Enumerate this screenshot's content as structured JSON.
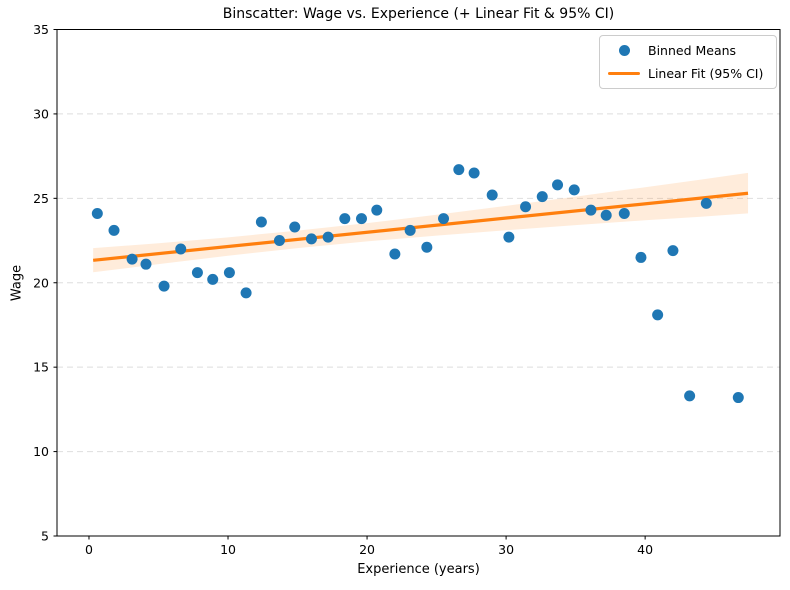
{
  "chart_data": {
    "type": "scatter",
    "title": "Binscatter: Wage vs. Experience (+ Linear Fit & 95% CI)",
    "xlabel": "Experience (years)",
    "ylabel": "Wage",
    "xlim": [
      -2.3,
      49.7
    ],
    "ylim": [
      5,
      35
    ],
    "xticks": [
      0,
      10,
      20,
      30,
      40
    ],
    "yticks": [
      5,
      10,
      15,
      20,
      25,
      30,
      35
    ],
    "grid": {
      "axis": "y",
      "style": "dashed",
      "on": true
    },
    "colors": {
      "points": "#1f77b4",
      "fit_line": "#ff7f0e",
      "ci_band": "rgba(255,127,14,0.15)",
      "grid": "#dedede",
      "spine": "#000000",
      "text": "#000000"
    },
    "legend": {
      "position": "upper right",
      "entries": [
        {
          "label": "Binned Means",
          "marker": "circle",
          "color": "#1f77b4"
        },
        {
          "label": "Linear Fit (95% CI)",
          "marker": "line",
          "color": "#ff7f0e"
        }
      ]
    },
    "series": [
      {
        "name": "Binned Means",
        "type": "scatter",
        "marker_diameter_px": 11,
        "points": [
          [
            0.6,
            24.1
          ],
          [
            1.8,
            23.1
          ],
          [
            3.1,
            21.4
          ],
          [
            4.1,
            21.1
          ],
          [
            5.4,
            19.8
          ],
          [
            6.6,
            22.0
          ],
          [
            7.8,
            20.6
          ],
          [
            8.9,
            20.2
          ],
          [
            10.1,
            20.6
          ],
          [
            11.3,
            19.4
          ],
          [
            12.4,
            23.6
          ],
          [
            13.7,
            22.5
          ],
          [
            14.8,
            23.3
          ],
          [
            16.0,
            22.6
          ],
          [
            17.2,
            22.7
          ],
          [
            18.4,
            23.8
          ],
          [
            19.6,
            23.8
          ],
          [
            20.7,
            24.3
          ],
          [
            22.0,
            21.7
          ],
          [
            23.1,
            23.1
          ],
          [
            24.3,
            22.1
          ],
          [
            25.5,
            23.8
          ],
          [
            26.6,
            26.7
          ],
          [
            27.7,
            26.5
          ],
          [
            29.0,
            25.2
          ],
          [
            30.2,
            22.7
          ],
          [
            31.4,
            24.5
          ],
          [
            32.6,
            25.1
          ],
          [
            33.7,
            25.8
          ],
          [
            34.9,
            25.5
          ],
          [
            36.1,
            24.3
          ],
          [
            37.2,
            24.0
          ],
          [
            38.5,
            24.1
          ],
          [
            39.7,
            21.5
          ],
          [
            40.9,
            18.1
          ],
          [
            42.0,
            21.9
          ],
          [
            43.2,
            13.3
          ],
          [
            44.4,
            24.7
          ],
          [
            46.7,
            13.2
          ]
        ]
      },
      {
        "name": "Linear Fit (95% CI)",
        "type": "line",
        "line": {
          "x": [
            0.3,
            47.4
          ],
          "y": [
            21.33,
            25.3
          ]
        },
        "ci": {
          "x": [
            0.3,
            5,
            10,
            15,
            20,
            25,
            30,
            35,
            40,
            44,
            47.4
          ],
          "upper": [
            22.05,
            22.34,
            22.69,
            23.09,
            23.53,
            24.03,
            24.55,
            25.1,
            25.66,
            26.11,
            26.51
          ],
          "lower": [
            20.62,
            21.1,
            21.6,
            22.05,
            22.45,
            22.79,
            23.11,
            23.41,
            23.7,
            23.91,
            24.11
          ]
        }
      }
    ]
  }
}
